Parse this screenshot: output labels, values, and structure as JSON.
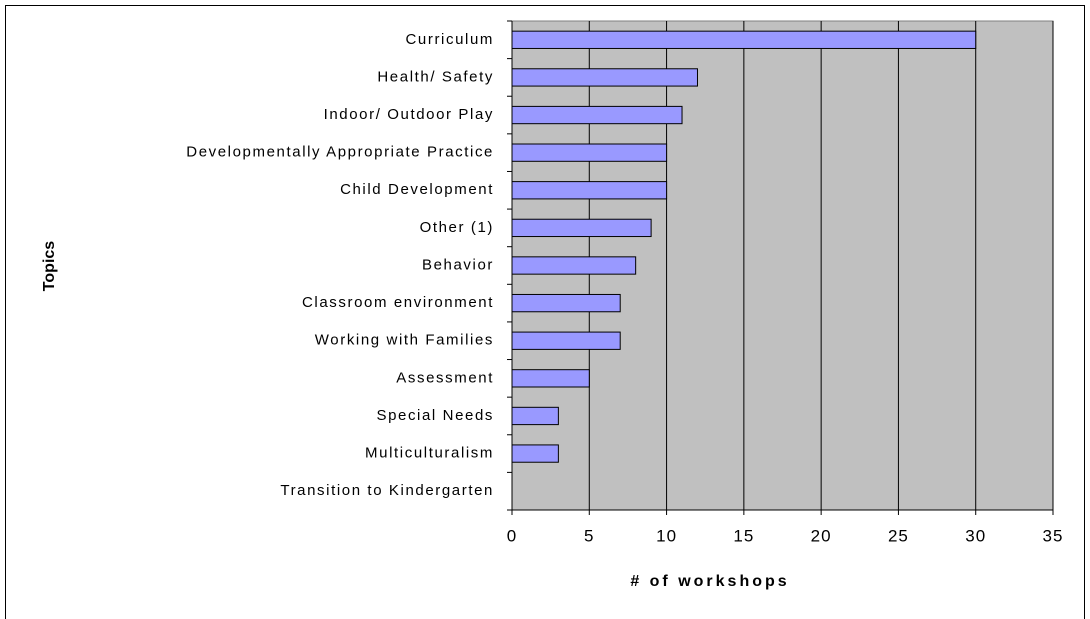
{
  "chart_data": {
    "type": "bar",
    "orientation": "horizontal",
    "x_label": "# of workshops",
    "y_label": "Topics",
    "categories": [
      "Curriculum",
      "Health/ Safety",
      "Indoor/ Outdoor Play",
      "Developmentally Appropriate Practice",
      "Child Development",
      "Other (1)",
      "Behavior",
      "Classroom environment",
      "Working with Families",
      "Assessment",
      "Special Needs",
      "Multiculturalism",
      "Transition to Kindergarten"
    ],
    "values": [
      30,
      12,
      11,
      10,
      10,
      9,
      8,
      7,
      7,
      5,
      3,
      3,
      0
    ],
    "color": "#9999ff",
    "plot_background": "#c0c0c0",
    "xlim": [
      0,
      35
    ],
    "xticks": [
      0,
      5,
      10,
      15,
      20,
      25,
      30,
      35
    ],
    "grid": true
  }
}
